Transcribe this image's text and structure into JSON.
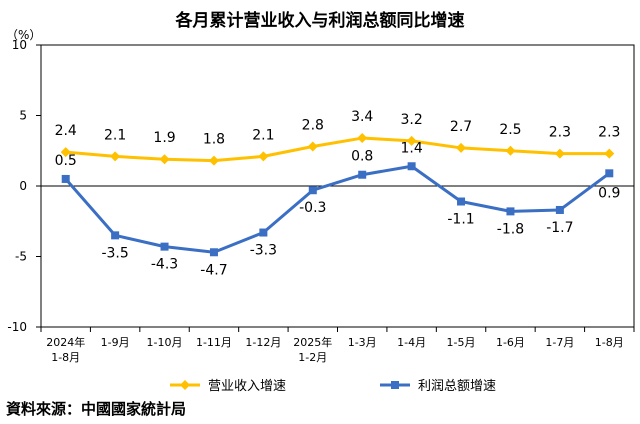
{
  "chart_data": {
    "type": "line",
    "title": "各月累计营业收入与利润总额同比增速",
    "unit": "（%）",
    "ylim": [
      -10,
      10
    ],
    "yticks": [
      "10",
      "5",
      "0",
      "-5",
      "-10"
    ],
    "ytick_values": [
      10,
      5,
      0,
      -5,
      -10
    ],
    "categories": [
      [
        "2024年",
        "1-8月"
      ],
      [
        "1-9月"
      ],
      [
        "1-10月"
      ],
      [
        "1-11月"
      ],
      [
        "1-12月"
      ],
      [
        "2025年",
        "1-2月"
      ],
      [
        "1-3月"
      ],
      [
        "1-4月"
      ],
      [
        "1-5月"
      ],
      [
        "1-6月"
      ],
      [
        "1-7月"
      ],
      [
        "1-8月"
      ]
    ],
    "series": [
      {
        "name": "营业收入增速",
        "color": "#FFC000",
        "marker": "diamond",
        "values": [
          2.4,
          2.1,
          1.9,
          1.8,
          2.1,
          2.8,
          3.4,
          3.2,
          2.7,
          2.5,
          2.3,
          2.3
        ],
        "labels": [
          "2.4",
          "2.1",
          "1.9",
          "1.8",
          "2.1",
          "2.8",
          "3.4",
          "3.2",
          "2.7",
          "2.5",
          "2.3",
          "2.3"
        ]
      },
      {
        "name": "利润总额增速",
        "color": "#3A6FC4",
        "marker": "square",
        "values": [
          0.5,
          -3.5,
          -4.3,
          -4.7,
          -3.3,
          -0.3,
          0.8,
          1.4,
          -1.1,
          -1.8,
          -1.7,
          0.9
        ],
        "labels": [
          "0.5",
          "-3.5",
          "-4.3",
          "-4.7",
          "-3.3",
          "-0.3",
          "0.8",
          "1.4",
          "-1.1",
          "-1.8",
          "-1.7",
          "0.9"
        ]
      }
    ],
    "legend": "bottom",
    "grid": false
  },
  "source": "資料來源：中國國家統計局"
}
